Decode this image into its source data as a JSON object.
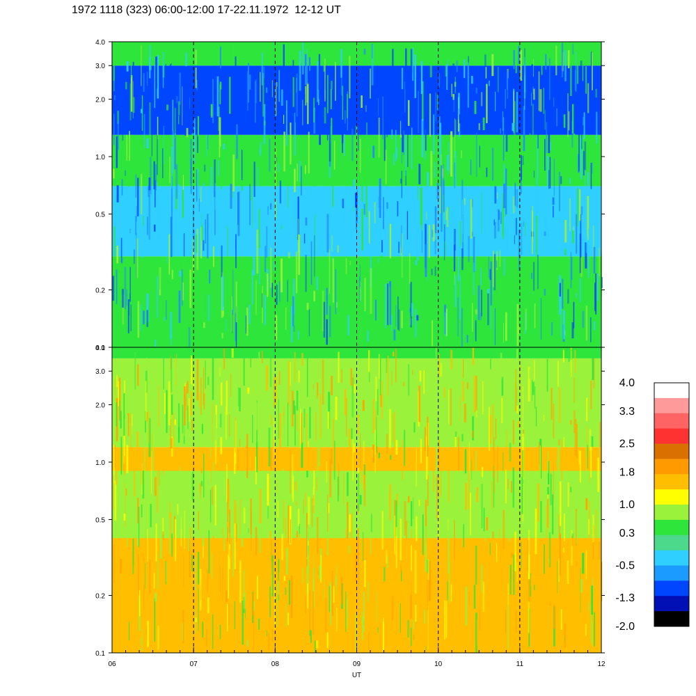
{
  "title": "1972 1118 (323) 06:00-12:00 17-22.11.1972  12-12 UT",
  "chart_data": [
    {
      "type": "heatmap",
      "panel": "upper",
      "title": "",
      "xlabel": "",
      "ylabel": "",
      "y_scale": "log",
      "ylim": [
        0.1,
        4.0
      ],
      "y_ticks": [
        "4.0",
        "3.0",
        "2.0",
        "1.0",
        "0.5",
        "0.2",
        "0.1"
      ],
      "y_tick_values": [
        4.0,
        3.0,
        2.0,
        1.0,
        0.5,
        0.2,
        0.1
      ],
      "dominant_colors": [
        "#2ee53c",
        "#1f8bff",
        "#2fcfff",
        "#9bf23a",
        "#0046ff"
      ],
      "band_levels": [
        {
          "from": 0.1,
          "to": 0.3,
          "level": 0.3
        },
        {
          "from": 0.3,
          "to": 0.7,
          "level": -0.5
        },
        {
          "from": 0.7,
          "to": 1.3,
          "level": 0.3
        },
        {
          "from": 1.3,
          "to": 3.0,
          "level": -1.3
        },
        {
          "from": 3.0,
          "to": 4.0,
          "level": 0.3
        }
      ]
    },
    {
      "type": "heatmap",
      "panel": "lower",
      "title": "",
      "xlabel": "UT",
      "ylabel": "",
      "y_scale": "log",
      "ylim": [
        0.1,
        4.0
      ],
      "y_ticks": [
        "4.0",
        "3.0",
        "2.0",
        "1.0",
        "0.5",
        "0.2",
        "0.1"
      ],
      "y_tick_values": [
        4.0,
        3.0,
        2.0,
        1.0,
        0.5,
        0.2,
        0.1
      ],
      "x_ticks": [
        "06",
        "07",
        "08",
        "09",
        "10",
        "11",
        "12"
      ],
      "x_tick_values": [
        6,
        7,
        8,
        9,
        10,
        11,
        12
      ],
      "xlim": [
        6,
        12
      ],
      "hour_markers": [
        7,
        8,
        9,
        10,
        11
      ],
      "dominant_colors": [
        "#ffa500",
        "#ffbf00",
        "#ffff00",
        "#9bf23a",
        "#2ee53c"
      ],
      "band_levels": [
        {
          "from": 0.1,
          "to": 0.4,
          "level": 1.8
        },
        {
          "from": 0.4,
          "to": 0.9,
          "level": 1.0
        },
        {
          "from": 0.9,
          "to": 1.2,
          "level": 1.8
        },
        {
          "from": 1.2,
          "to": 3.5,
          "level": 1.0
        },
        {
          "from": 3.5,
          "to": 4.0,
          "level": 0.3
        }
      ]
    }
  ],
  "colorbar": {
    "labels": [
      "4.0",
      "3.3",
      "2.5",
      "1.8",
      "1.0",
      "0.3",
      "-0.5",
      "-1.3",
      "-2.0"
    ],
    "label_values": [
      4.0,
      3.3,
      2.5,
      1.8,
      1.0,
      0.3,
      -0.5,
      -1.3,
      -2.0
    ],
    "colors_top_to_bottom": [
      "#ffffff",
      "#ff9a9a",
      "#ff6464",
      "#ff3232",
      "#d97000",
      "#ff9a00",
      "#ffbf00",
      "#ffff00",
      "#9bf23a",
      "#2ee53c",
      "#4cd98c",
      "#2fcfff",
      "#1b9aff",
      "#0046ff",
      "#0010b4",
      "#000000"
    ]
  }
}
